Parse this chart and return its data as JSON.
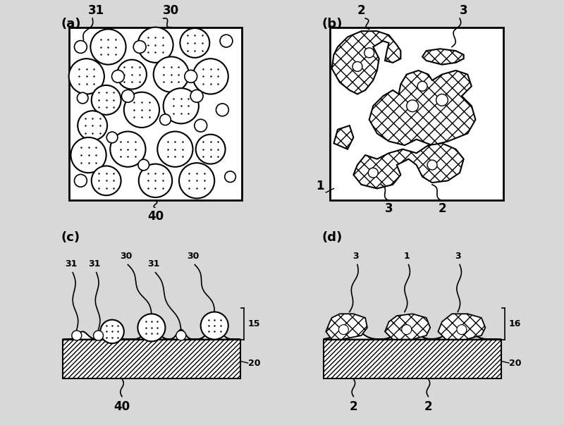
{
  "bg_color": "#d8d8d8",
  "panel_bg": "#ffffff",
  "line_color": "#000000",
  "label_fontsize": 13,
  "annot_fontsize": 12,
  "large_circles": [
    [
      0.28,
      0.82,
      0.09
    ],
    [
      0.52,
      0.83,
      0.09
    ],
    [
      0.72,
      0.84,
      0.075
    ],
    [
      0.17,
      0.67,
      0.09
    ],
    [
      0.4,
      0.68,
      0.075
    ],
    [
      0.27,
      0.55,
      0.075
    ],
    [
      0.6,
      0.68,
      0.09
    ],
    [
      0.8,
      0.67,
      0.09
    ],
    [
      0.2,
      0.42,
      0.075
    ],
    [
      0.45,
      0.5,
      0.09
    ],
    [
      0.65,
      0.52,
      0.09
    ],
    [
      0.18,
      0.27,
      0.09
    ],
    [
      0.38,
      0.3,
      0.09
    ],
    [
      0.62,
      0.3,
      0.09
    ],
    [
      0.8,
      0.3,
      0.075
    ],
    [
      0.27,
      0.14,
      0.075
    ],
    [
      0.52,
      0.14,
      0.085
    ],
    [
      0.73,
      0.14,
      0.09
    ]
  ],
  "small_circles": [
    [
      0.88,
      0.85,
      0.032
    ],
    [
      0.14,
      0.82,
      0.032
    ],
    [
      0.44,
      0.82,
      0.032
    ],
    [
      0.33,
      0.67,
      0.032
    ],
    [
      0.7,
      0.67,
      0.032
    ],
    [
      0.73,
      0.57,
      0.032
    ],
    [
      0.38,
      0.57,
      0.032
    ],
    [
      0.15,
      0.56,
      0.028
    ],
    [
      0.57,
      0.45,
      0.028
    ],
    [
      0.86,
      0.5,
      0.032
    ],
    [
      0.3,
      0.36,
      0.028
    ],
    [
      0.75,
      0.42,
      0.032
    ],
    [
      0.14,
      0.14,
      0.032
    ],
    [
      0.9,
      0.16,
      0.028
    ],
    [
      0.46,
      0.22,
      0.028
    ]
  ]
}
